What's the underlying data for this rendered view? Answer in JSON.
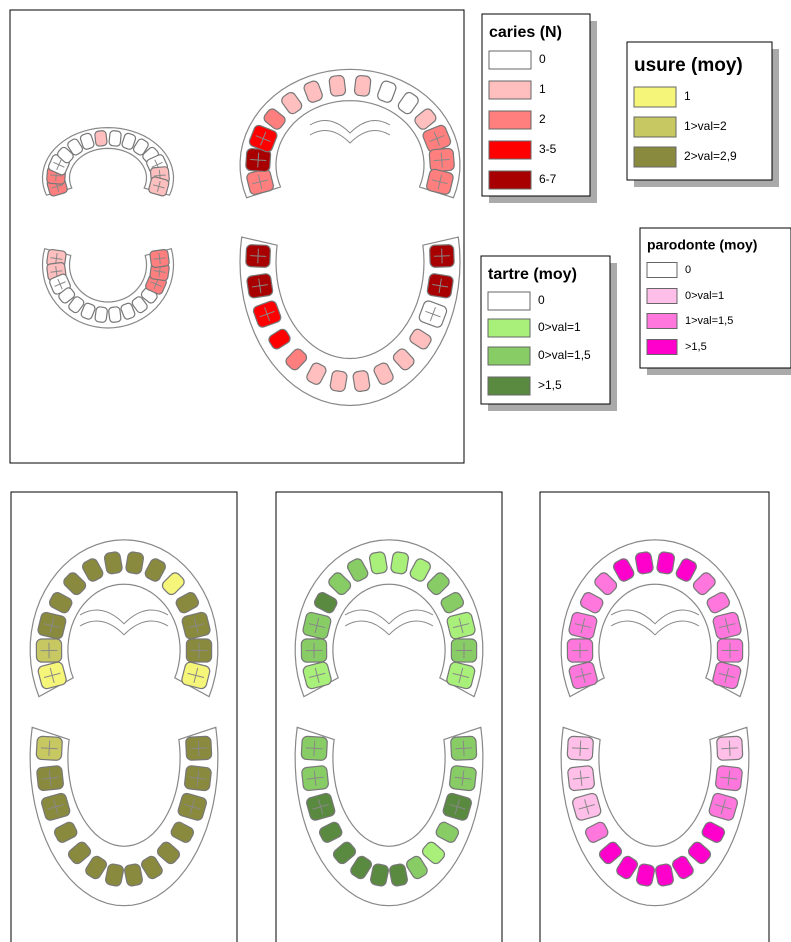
{
  "legends": [
    {
      "title": "caries (N)",
      "items": [
        {
          "label": "0",
          "color": "#ffffff"
        },
        {
          "label": "1",
          "color": "#ffbfbf"
        },
        {
          "label": "2",
          "color": "#ff7f7f"
        },
        {
          "label": "3-5",
          "color": "#ff0000"
        },
        {
          "label": "6-7",
          "color": "#a80000"
        }
      ]
    },
    {
      "title": "usure (moy)",
      "items": [
        {
          "label": "1",
          "color": "#f5f57a"
        },
        {
          "label": "1>val=2",
          "color": "#c8c862"
        },
        {
          "label": "2>val=2,9",
          "color": "#8a8a3e"
        }
      ]
    },
    {
      "title": "tartre (moy)",
      "items": [
        {
          "label": "0",
          "color": "#ffffff"
        },
        {
          "label": "0>val=1",
          "color": "#a8f07a"
        },
        {
          "label": "0>val=1,5",
          "color": "#88cc66"
        },
        {
          "label": ">1,5",
          "color": "#5a8a40"
        }
      ]
    },
    {
      "title": "parodonte (moy)",
      "items": [
        {
          "label": "0",
          "color": "#ffffff"
        },
        {
          "label": "0>val=1",
          "color": "#ffbfe8"
        },
        {
          "label": "1>val=1,5",
          "color": "#ff77dd"
        },
        {
          "label": ">1,5",
          "color": "#ff00cc"
        }
      ]
    }
  ]
}
